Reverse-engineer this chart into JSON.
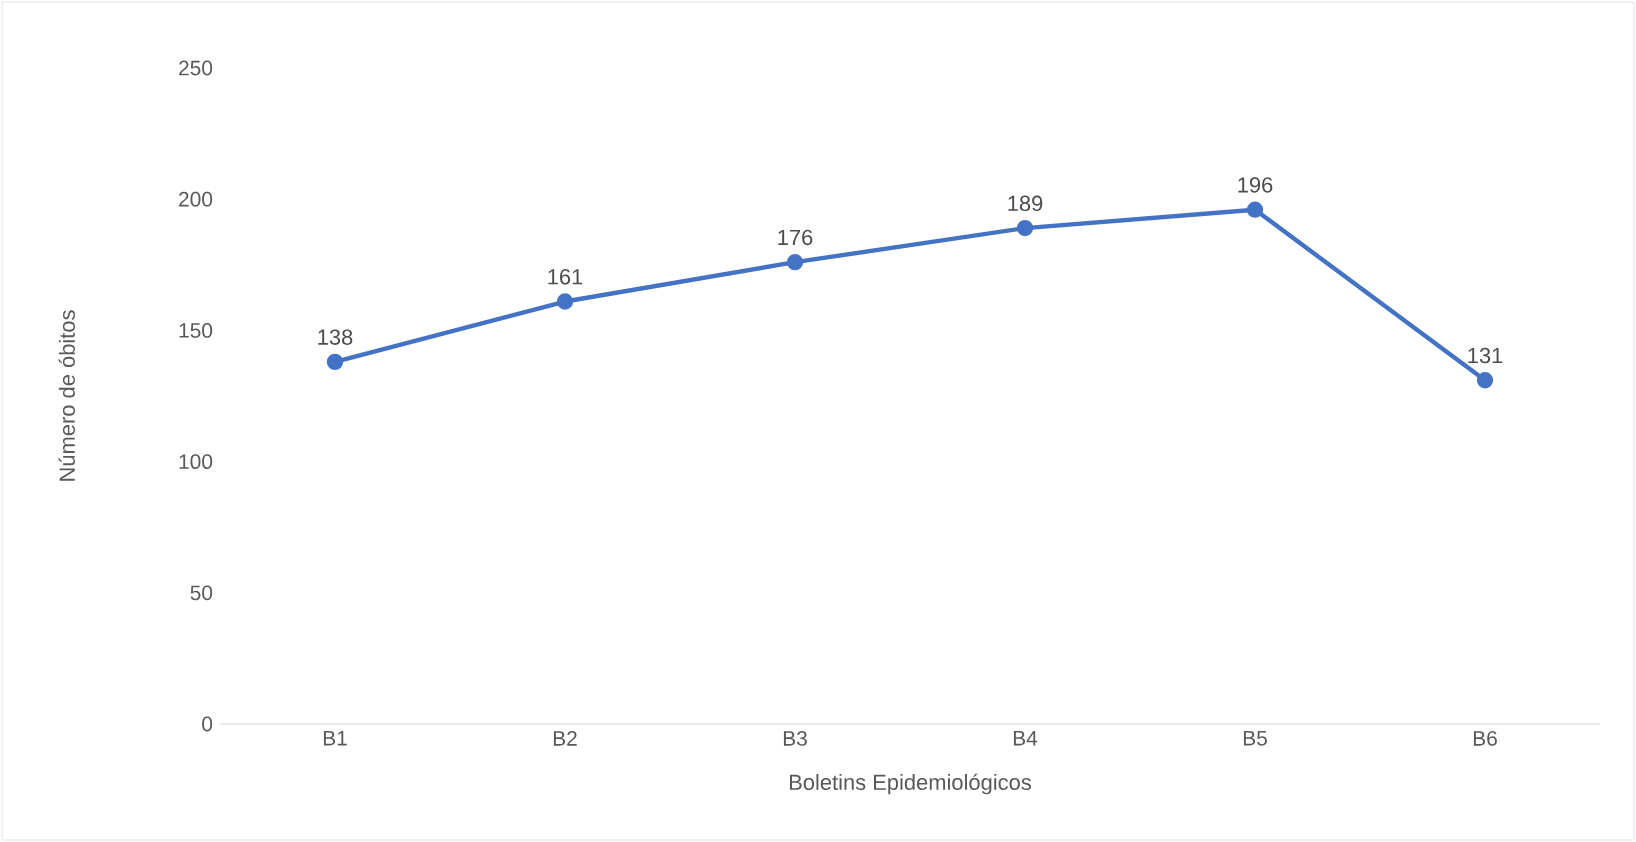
{
  "chart_data": {
    "type": "line",
    "xlabel": "Boletins Epidemiológicos",
    "ylabel": "Número de óbitos",
    "categories": [
      "B1",
      "B2",
      "B3",
      "B4",
      "B5",
      "B6"
    ],
    "series": [
      {
        "color": "#4472c4",
        "values": [
          138,
          161,
          176,
          189,
          196,
          131
        ]
      }
    ],
    "ylim": [
      0,
      250
    ],
    "yticks": [
      0,
      50,
      100,
      150,
      200,
      250
    ],
    "data_labels": true,
    "marker": "circle",
    "line_style": "solid"
  }
}
